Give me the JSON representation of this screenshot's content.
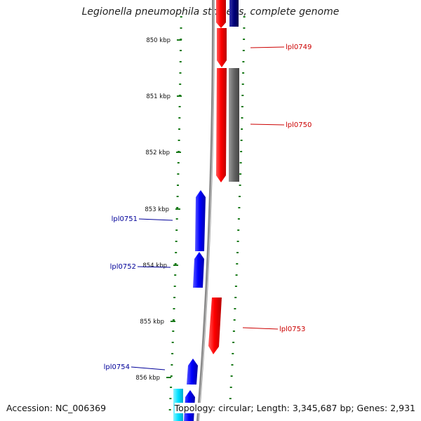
{
  "title": "Legionella pneumophila str. Lens, complete genome",
  "footer": {
    "accession": "Accession: NC_006369",
    "stats": "Topology: circular; Length: 3,345,687 bp; Genes: 2,931"
  },
  "colors": {
    "forward_gene": "#ff0000",
    "reverse_gene": "#0000ff",
    "gray_feature": "#666666",
    "navy_feature": "#00007a",
    "cyan_feature": "#00e0ff",
    "tick": "#1a7a1a",
    "backbone": "#888888",
    "forward_label": "#cc0000",
    "reverse_label": "#000099"
  },
  "ticks": [
    "850 kbp",
    "851 kbp",
    "852 kbp",
    "853 kbp",
    "854 kbp",
    "855 kbp",
    "856 kbp"
  ],
  "genes": [
    {
      "label": "lpl0749",
      "strand": "forward"
    },
    {
      "label": "lpl0750",
      "strand": "forward"
    },
    {
      "label": "lpl0751",
      "strand": "reverse"
    },
    {
      "label": "lpl0752",
      "strand": "reverse"
    },
    {
      "label": "lpl0753",
      "strand": "forward"
    },
    {
      "label": "lpl0754",
      "strand": "reverse"
    }
  ]
}
